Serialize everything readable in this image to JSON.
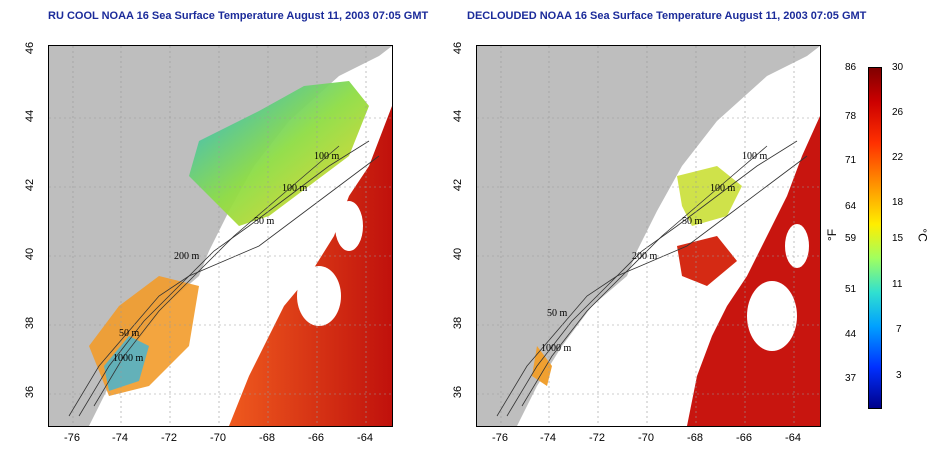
{
  "left_panel": {
    "title": "RU COOL NOAA 16 Sea Surface Temperature August 11, 2003 07:05 GMT",
    "contour_labels": [
      "100 m",
      "100 m",
      "50 m",
      "200 m",
      "50 m",
      "1000 m"
    ]
  },
  "right_panel": {
    "title": "DECLOUDED NOAA 16 Sea Surface Temperature August 11, 2003 07:05 GMT",
    "contour_labels": [
      "100 m",
      "100 m",
      "50 m",
      "200 m",
      "50 m",
      "1000 m"
    ]
  },
  "axes": {
    "lat_ticks": [
      "46",
      "44",
      "42",
      "40",
      "38",
      "36"
    ],
    "lon_ticks": [
      "-76",
      "-74",
      "-72",
      "-70",
      "-68",
      "-66",
      "-64"
    ]
  },
  "colorbar": {
    "fahrenheit_ticks": [
      "86",
      "78",
      "71",
      "64",
      "59",
      "51",
      "44",
      "37"
    ],
    "celsius_ticks": [
      "30",
      "26",
      "22",
      "18",
      "15",
      "11",
      "7",
      "3"
    ],
    "fahrenheit_unit": "°F",
    "celsius_unit": "°C"
  },
  "colors": {
    "land": "#bebebe",
    "no_data": "#ffffff",
    "title": "#1b2b9a"
  }
}
